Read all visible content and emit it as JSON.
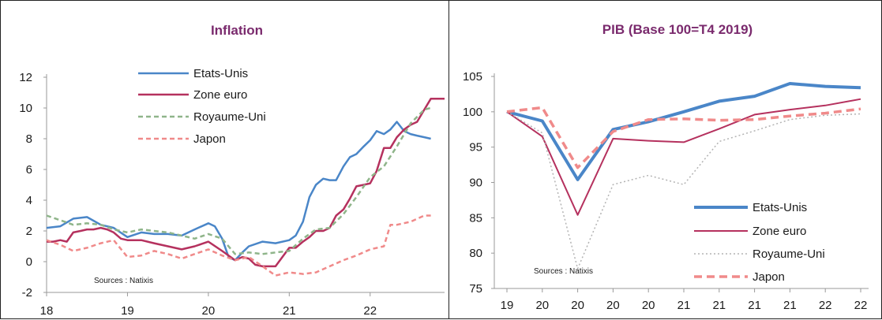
{
  "chart_data": [
    {
      "type": "line",
      "title": "Inflation",
      "source": "Sources : Natixis",
      "ylim": [
        -2,
        12
      ],
      "yticks": [
        -2,
        0,
        2,
        4,
        6,
        8,
        10,
        12
      ],
      "xlim": [
        18,
        22.92
      ],
      "xticks": [
        18,
        19,
        20,
        21,
        22
      ],
      "grid": false,
      "legend": "top",
      "series": [
        {
          "name": "Etats-Unis",
          "color": "#4a86c8",
          "dash": "none",
          "x": [
            18,
            18.17,
            18.33,
            18.5,
            18.67,
            18.83,
            19,
            19.17,
            19.33,
            19.5,
            19.67,
            19.83,
            20,
            20.08,
            20.17,
            20.25,
            20.33,
            20.42,
            20.5,
            20.67,
            20.83,
            21,
            21.08,
            21.17,
            21.25,
            21.33,
            21.42,
            21.5,
            21.58,
            21.67,
            21.75,
            21.83,
            21.92,
            22,
            22.08,
            22.17,
            22.25,
            22.33,
            22.42,
            22.5,
            22.58,
            22.67,
            22.75
          ],
          "y": [
            2.2,
            2.3,
            2.8,
            2.9,
            2.4,
            2.2,
            1.6,
            1.9,
            1.8,
            1.8,
            1.7,
            2.1,
            2.5,
            2.3,
            1.5,
            0.3,
            0.1,
            0.6,
            1.0,
            1.3,
            1.2,
            1.4,
            1.7,
            2.6,
            4.2,
            5.0,
            5.4,
            5.3,
            5.3,
            6.2,
            6.8,
            7.0,
            7.5,
            7.9,
            8.5,
            8.3,
            8.6,
            9.1,
            8.5,
            8.3,
            8.2,
            8.1,
            8.0
          ]
        },
        {
          "name": "Zone euro",
          "color": "#b5315e",
          "dash": "none",
          "x": [
            18,
            18.08,
            18.17,
            18.25,
            18.33,
            18.42,
            18.5,
            18.58,
            18.67,
            18.75,
            18.83,
            18.92,
            19,
            19.17,
            19.33,
            19.5,
            19.67,
            19.83,
            20,
            20.17,
            20.33,
            20.42,
            20.5,
            20.58,
            20.67,
            20.83,
            21,
            21.08,
            21.17,
            21.25,
            21.33,
            21.42,
            21.5,
            21.58,
            21.67,
            21.75,
            21.83,
            21.92,
            22,
            22.08,
            22.17,
            22.25,
            22.33,
            22.42,
            22.5,
            22.58,
            22.67,
            22.75,
            22.83,
            22.92
          ],
          "y": [
            1.3,
            1.3,
            1.4,
            1.3,
            1.9,
            2.0,
            2.1,
            2.1,
            2.2,
            2.1,
            1.9,
            1.5,
            1.4,
            1.4,
            1.2,
            1.0,
            0.8,
            1.0,
            1.3,
            0.7,
            0.1,
            0.3,
            0.2,
            -0.2,
            -0.3,
            -0.3,
            0.9,
            0.9,
            1.3,
            1.6,
            2.0,
            2.0,
            2.2,
            3.0,
            3.4,
            4.1,
            4.9,
            5.0,
            5.1,
            5.9,
            7.4,
            7.4,
            8.1,
            8.6,
            8.9,
            9.1,
            9.9,
            10.6,
            10.6,
            10.6
          ],
          "clip_x": 22.92
        },
        {
          "name": "Royaume-Uni",
          "color": "#8fb58a",
          "dash": "6,4",
          "x": [
            18,
            18.17,
            18.33,
            18.5,
            18.67,
            18.83,
            19,
            19.17,
            19.33,
            19.5,
            19.67,
            19.83,
            20,
            20.17,
            20.33,
            20.5,
            20.67,
            20.83,
            21,
            21.17,
            21.33,
            21.5,
            21.67,
            21.83,
            22,
            22.17,
            22.33,
            22.5,
            22.67,
            22.75
          ],
          "y": [
            3.0,
            2.7,
            2.4,
            2.5,
            2.4,
            2.1,
            1.9,
            2.1,
            2.0,
            1.9,
            1.7,
            1.5,
            1.8,
            1.5,
            0.5,
            0.6,
            0.5,
            0.6,
            0.7,
            1.5,
            2.1,
            2.2,
            3.1,
            4.2,
            5.5,
            6.2,
            7.5,
            9.0,
            9.9,
            10.0
          ]
        },
        {
          "name": "Japon",
          "color": "#f08a8a",
          "dash": "6,4",
          "x": [
            18,
            18.17,
            18.33,
            18.5,
            18.67,
            18.83,
            19,
            19.17,
            19.33,
            19.5,
            19.67,
            19.83,
            20,
            20.17,
            20.33,
            20.5,
            20.67,
            20.83,
            21,
            21.17,
            21.33,
            21.5,
            21.67,
            21.83,
            22,
            22.17,
            22.25,
            22.33,
            22.5,
            22.67,
            22.75
          ],
          "y": [
            1.4,
            1.1,
            0.7,
            0.9,
            1.2,
            1.4,
            0.3,
            0.4,
            0.7,
            0.5,
            0.2,
            0.5,
            0.8,
            0.4,
            0.1,
            0.3,
            -0.3,
            -0.9,
            -0.7,
            -0.8,
            -0.7,
            -0.3,
            0.1,
            0.4,
            0.8,
            1.0,
            2.4,
            2.4,
            2.6,
            3.0,
            3.0
          ]
        }
      ]
    },
    {
      "type": "line",
      "title": "PIB (Base 100=T4 2019)",
      "source": "Sources : Natixis",
      "ylim": [
        75,
        105
      ],
      "yticks": [
        75,
        80,
        85,
        90,
        95,
        100,
        105
      ],
      "categories": [
        "19",
        "20",
        "20",
        "20",
        "20",
        "21",
        "21",
        "21",
        "21",
        "22",
        "22"
      ],
      "grid": false,
      "legend": "bottom-right",
      "series": [
        {
          "name": "Etats-Unis",
          "color": "#4a86c8",
          "dash": "none",
          "values": [
            100,
            98.7,
            90.4,
            97.5,
            98.6,
            100.0,
            101.5,
            102.2,
            104.0,
            103.6,
            103.4
          ]
        },
        {
          "name": "Zone euro",
          "color": "#b5315e",
          "dash": "none",
          "values": [
            100,
            96.5,
            85.4,
            96.2,
            95.9,
            95.7,
            97.6,
            99.6,
            100.3,
            100.9,
            101.8
          ]
        },
        {
          "name": "Royaume-Uni",
          "color": "#b3b3b3",
          "dash": "2,3",
          "values": [
            100,
            97.0,
            77.8,
            89.7,
            91.0,
            89.7,
            95.8,
            97.3,
            98.9,
            99.5,
            99.7
          ]
        },
        {
          "name": "Japon",
          "color": "#f08a8a",
          "dash": "10,6",
          "values": [
            100,
            100.6,
            92.1,
            97.2,
            98.9,
            99.0,
            98.8,
            98.9,
            99.4,
            99.8,
            100.4
          ]
        }
      ]
    }
  ]
}
